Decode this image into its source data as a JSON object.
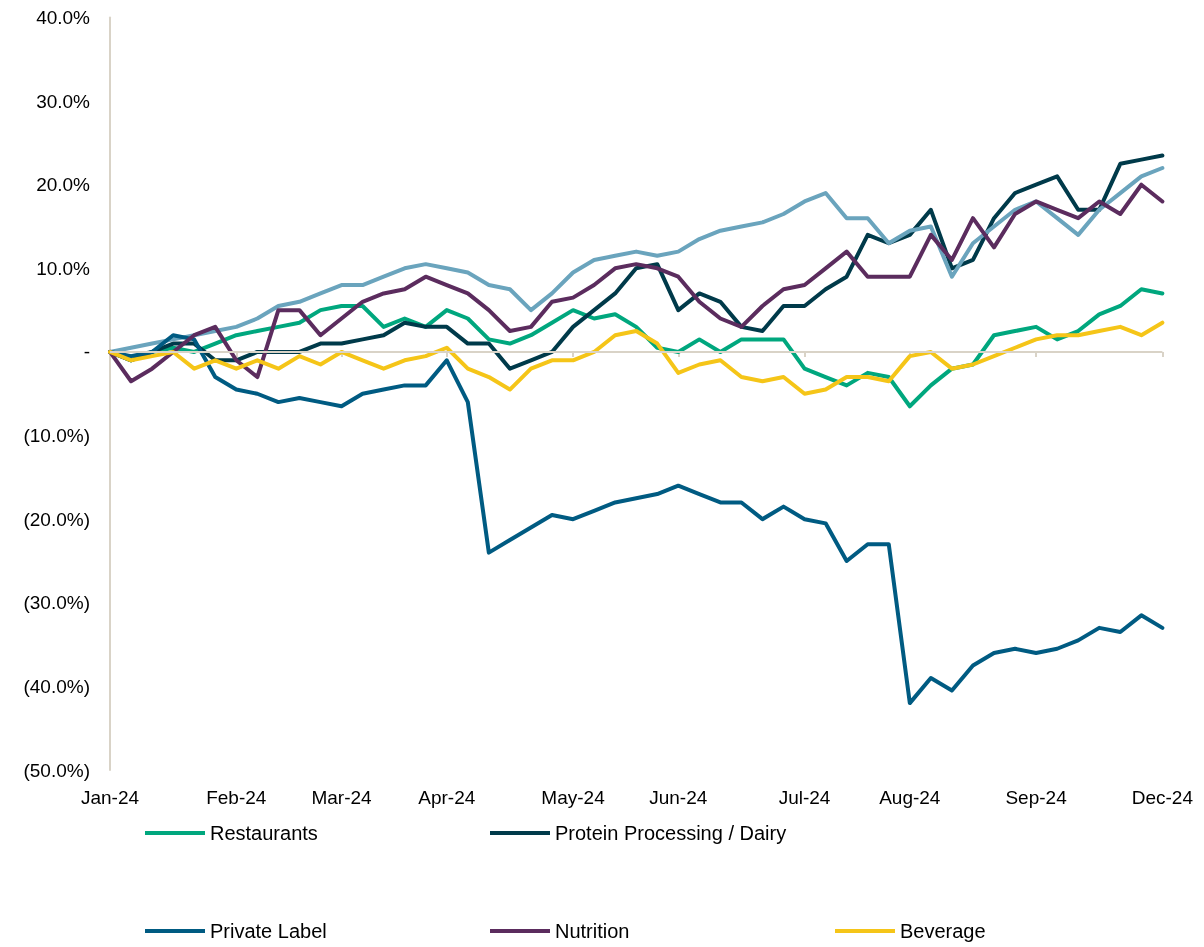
{
  "chart_data": {
    "type": "line",
    "categories": [
      "Jan-24",
      null,
      null,
      null,
      null,
      null,
      "Feb-24",
      null,
      null,
      null,
      null,
      "Mar-24",
      null,
      null,
      null,
      null,
      "Apr-24",
      null,
      null,
      null,
      null,
      null,
      "May-24",
      null,
      null,
      null,
      null,
      "Jun-24",
      null,
      null,
      null,
      null,
      null,
      "Jul-24",
      null,
      null,
      null,
      null,
      "Aug-24",
      null,
      null,
      null,
      null,
      null,
      "Sep-24",
      null,
      null,
      null,
      null,
      null,
      "Dec-24"
    ],
    "ylim": [
      -50,
      40
    ],
    "yticks": [
      {
        "value": -50,
        "label": "(50.0%)"
      },
      {
        "value": -40,
        "label": "(40.0%)"
      },
      {
        "value": -30,
        "label": "(30.0%)"
      },
      {
        "value": -20,
        "label": "(20.0%)"
      },
      {
        "value": -10,
        "label": "(10.0%)"
      },
      {
        "value": 0,
        "label": "-"
      },
      {
        "value": 10,
        "label": "10.0%"
      },
      {
        "value": 20,
        "label": "20.0%"
      },
      {
        "value": 30,
        "label": "30.0%"
      },
      {
        "value": 40,
        "label": "40.0%"
      }
    ],
    "grid": false,
    "ref_lines": [
      {
        "axis": "y",
        "value": 0,
        "color": "#d9d3c7",
        "line_style": "solid"
      }
    ],
    "legend": "bottom",
    "marker": "none",
    "line_style": "solid",
    "series": [
      {
        "name": "Restaurants",
        "color": "#00a77e",
        "values": [
          0,
          -1,
          0,
          0.5,
          0,
          1,
          2,
          2.5,
          3,
          3.5,
          5,
          5.5,
          5.5,
          3,
          4,
          3,
          5,
          4,
          1.5,
          1,
          2,
          3.5,
          5,
          4,
          4.5,
          3,
          0.5,
          0,
          1.5,
          0,
          1.5,
          1.5,
          1.5,
          -2,
          -3,
          -4,
          -2.5,
          -3,
          -6.5,
          -4,
          -2,
          -1.5,
          2,
          2.5,
          3,
          1.5,
          2.5,
          4.5,
          5.5,
          7.5,
          7
        ]
      },
      {
        "name": "Protein Processing / Dairy",
        "color": "#003a4a",
        "values": [
          0,
          -1,
          0,
          1,
          1,
          -1,
          -1,
          0,
          0,
          0,
          1,
          1,
          1.5,
          2,
          3.5,
          3,
          3,
          1,
          1,
          -2,
          -1,
          0,
          3,
          5,
          7,
          10,
          10.5,
          5,
          7,
          6,
          3,
          2.5,
          5.5,
          5.5,
          7.5,
          9,
          14,
          13,
          14,
          17,
          10,
          11,
          16,
          19,
          20,
          21,
          17,
          17,
          22.5,
          23,
          23.5
        ]
      },
      {
        "color": "#6aa4bd",
        "values": [
          0,
          0.5,
          1,
          1.5,
          2,
          2.5,
          3,
          4,
          5.5,
          6,
          7,
          8,
          8,
          9,
          10,
          10.5,
          10,
          9.5,
          8,
          7.5,
          5,
          7,
          9.5,
          11,
          11.5,
          12,
          11.5,
          12,
          13.5,
          14.5,
          15,
          15.5,
          16.5,
          18,
          19,
          16,
          16,
          13,
          14.5,
          15,
          9,
          13,
          15,
          17,
          18,
          16,
          14,
          17,
          19,
          21,
          22
        ]
      },
      {
        "name": "Private Label",
        "color": "#005b82",
        "values": [
          0,
          -0.5,
          0,
          2,
          1.5,
          -3,
          -4.5,
          -5,
          -6,
          -5.5,
          -6,
          -6.5,
          -5,
          -4.5,
          -4,
          -4,
          -1,
          -6,
          -24,
          -22.5,
          -21,
          -19.5,
          -20,
          -19,
          -18,
          -17.5,
          -17,
          -16,
          -17,
          -18,
          -18,
          -20,
          -18.5,
          -20,
          -20.5,
          -25,
          -23,
          -23,
          -42,
          -39,
          -40.5,
          -37.5,
          -36,
          -35.5,
          -36,
          -35.5,
          -34.5,
          -33,
          -33.5,
          -31.5,
          -33
        ]
      },
      {
        "name": "Nutrition",
        "color": "#5b2c5e",
        "values": [
          0,
          -3.5,
          -2,
          0,
          2,
          3,
          -1,
          -3,
          5,
          5,
          2,
          4,
          6,
          7,
          7.5,
          9,
          8,
          7,
          5,
          2.5,
          3,
          6,
          6.5,
          8,
          10,
          10.5,
          10,
          9,
          6,
          4,
          3,
          5.5,
          7.5,
          8,
          10,
          12,
          9,
          9,
          9,
          14,
          11,
          16,
          12.5,
          16.5,
          18,
          17,
          16,
          18,
          16.5,
          20,
          18
        ]
      },
      {
        "name": "Beverage",
        "color": "#f5c518",
        "values": [
          0,
          -1,
          -0.5,
          0,
          -2,
          -1,
          -2,
          -1,
          -2,
          -0.5,
          -1.5,
          0,
          -1,
          -2,
          -1,
          -0.5,
          0.5,
          -2,
          -3,
          -4.5,
          -2,
          -1,
          -1,
          0,
          2,
          2.5,
          1,
          -2.5,
          -1.5,
          -1,
          -3,
          -3.5,
          -3,
          -5,
          -4.5,
          -3,
          -3,
          -3.5,
          -0.5,
          0,
          -2,
          -1.5,
          -0.5,
          0.5,
          1.5,
          2,
          2,
          2.5,
          3,
          2,
          3.5
        ]
      }
    ]
  }
}
